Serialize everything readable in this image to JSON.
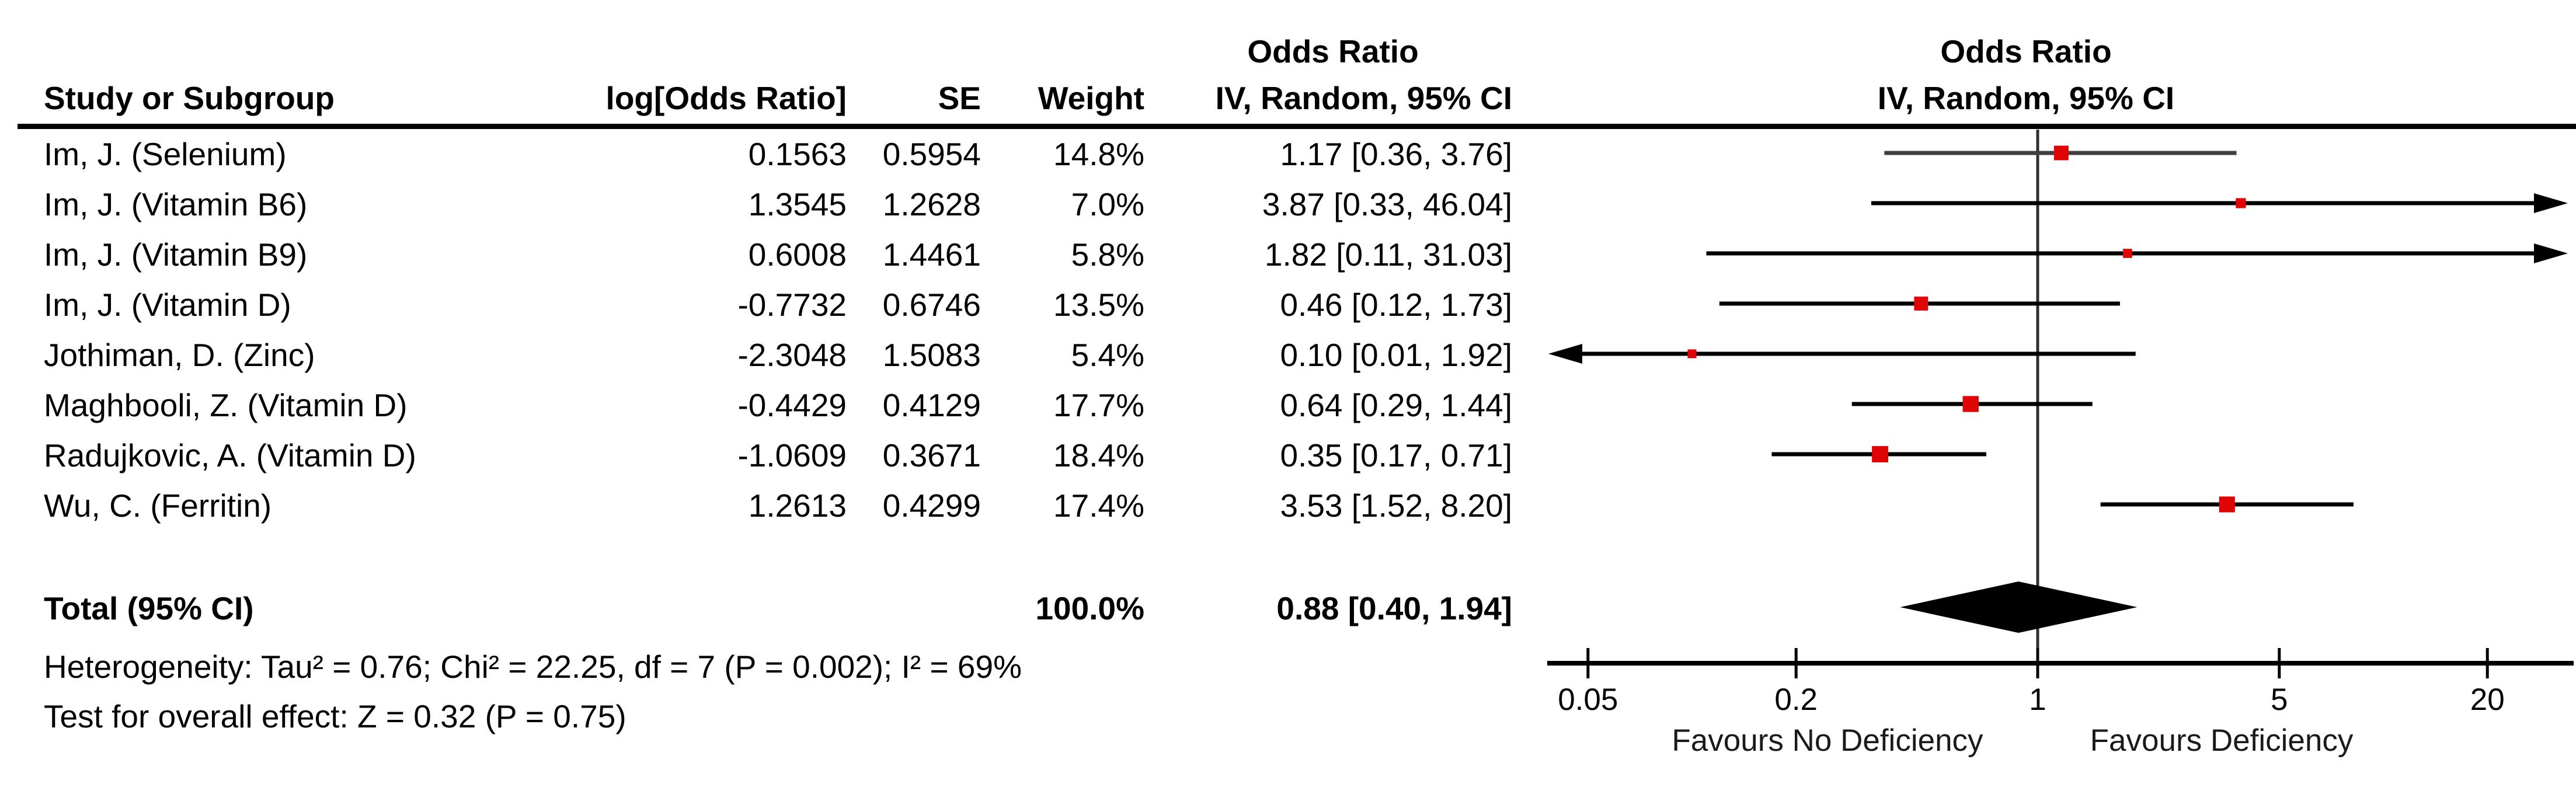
{
  "header": {
    "col_study": "Study or Subgroup",
    "col_log_or": "log[Odds Ratio]",
    "col_se": "SE",
    "col_weight": "Weight",
    "col_effect_title": "Odds Ratio",
    "col_effect_sub": "IV, Random, 95% CI",
    "plot_title": "Odds Ratio",
    "plot_sub": "IV, Random, 95% CI"
  },
  "chart_data": {
    "type": "scatter",
    "variant": "forest_plot_random_effects",
    "effect_measure": "Odds Ratio",
    "method": "IV, Random, 95% CI",
    "x_scale": "log",
    "x_range": [
      0.05,
      20
    ],
    "x_ticks": [
      0.05,
      0.2,
      1,
      5,
      20
    ],
    "x_tick_labels": [
      "0.05",
      "0.2",
      "1",
      "5",
      "20"
    ],
    "favours_left": "Favours No Deficiency",
    "favours_right": "Favours Deficiency",
    "marker_color": "#e00505",
    "diamond_color": "#000000",
    "studies": [
      {
        "name": "Im, J. (Selenium)",
        "log_or": 0.1563,
        "se": 0.5954,
        "weight_pct": 14.8,
        "or": 1.17,
        "ci_low": 0.36,
        "ci_high": 3.76,
        "log_or_text": "0.1563",
        "se_text": "0.5954",
        "weight_text": "14.8%",
        "ci_text": "1.17 [0.36, 3.76]",
        "line_color": "#3f3f3f"
      },
      {
        "name": "Im, J. (Vitamin B6)",
        "log_or": 1.3545,
        "se": 1.2628,
        "weight_pct": 7.0,
        "or": 3.87,
        "ci_low": 0.33,
        "ci_high": 46.04,
        "log_or_text": "1.3545",
        "se_text": "1.2628",
        "weight_text": "7.0%",
        "ci_text": "3.87 [0.33, 46.04]",
        "line_color": "#000000"
      },
      {
        "name": "Im, J. (Vitamin B9)",
        "log_or": 0.6008,
        "se": 1.4461,
        "weight_pct": 5.8,
        "or": 1.82,
        "ci_low": 0.11,
        "ci_high": 31.03,
        "log_or_text": "0.6008",
        "se_text": "1.4461",
        "weight_text": "5.8%",
        "ci_text": "1.82 [0.11, 31.03]",
        "line_color": "#000000"
      },
      {
        "name": "Im, J. (Vitamin D)",
        "log_or": -0.7732,
        "se": 0.6746,
        "weight_pct": 13.5,
        "or": 0.46,
        "ci_low": 0.12,
        "ci_high": 1.73,
        "log_or_text": "-0.7732",
        "se_text": "0.6746",
        "weight_text": "13.5%",
        "ci_text": "0.46 [0.12, 1.73]",
        "line_color": "#000000"
      },
      {
        "name": "Jothiman, D. (Zinc)",
        "log_or": -2.3048,
        "se": 1.5083,
        "weight_pct": 5.4,
        "or": 0.1,
        "ci_low": 0.01,
        "ci_high": 1.92,
        "log_or_text": "-2.3048",
        "se_text": "1.5083",
        "weight_text": "5.4%",
        "ci_text": "0.10 [0.01, 1.92]",
        "line_color": "#000000"
      },
      {
        "name": "Maghbooli, Z. (Vitamin D)",
        "log_or": -0.4429,
        "se": 0.4129,
        "weight_pct": 17.7,
        "or": 0.64,
        "ci_low": 0.29,
        "ci_high": 1.44,
        "log_or_text": "-0.4429",
        "se_text": "0.4129",
        "weight_text": "17.7%",
        "ci_text": "0.64 [0.29, 1.44]",
        "line_color": "#000000"
      },
      {
        "name": "Radujkovic, A. (Vitamin D)",
        "log_or": -1.0609,
        "se": 0.3671,
        "weight_pct": 18.4,
        "or": 0.35,
        "ci_low": 0.17,
        "ci_high": 0.71,
        "log_or_text": "-1.0609",
        "se_text": "0.3671",
        "weight_text": "18.4%",
        "ci_text": "0.35 [0.17, 0.71]",
        "line_color": "#000000"
      },
      {
        "name": "Wu, C. (Ferritin)",
        "log_or": 1.2613,
        "se": 0.4299,
        "weight_pct": 17.4,
        "or": 3.53,
        "ci_low": 1.52,
        "ci_high": 8.2,
        "log_or_text": "1.2613",
        "se_text": "0.4299",
        "weight_text": "17.4%",
        "ci_text": "3.53 [1.52, 8.20]",
        "line_color": "#000000"
      }
    ],
    "total": {
      "label": "Total (95% CI)",
      "weight_text": "100.0%",
      "ci_text": "0.88 [0.40, 1.94]",
      "or": 0.88,
      "ci_low": 0.4,
      "ci_high": 1.94
    },
    "heterogeneity_text": "Heterogeneity: Tau² = 0.76; Chi² = 22.25, df = 7 (P = 0.002); I² = 69%",
    "heterogeneity": {
      "tau2": 0.76,
      "chi2": 22.25,
      "df": 7,
      "p": 0.002,
      "i2_pct": 69
    },
    "overall_effect_text": "Test for overall effect: Z = 0.32 (P = 0.75)",
    "overall_effect": {
      "z": 0.32,
      "p": 0.75
    }
  }
}
